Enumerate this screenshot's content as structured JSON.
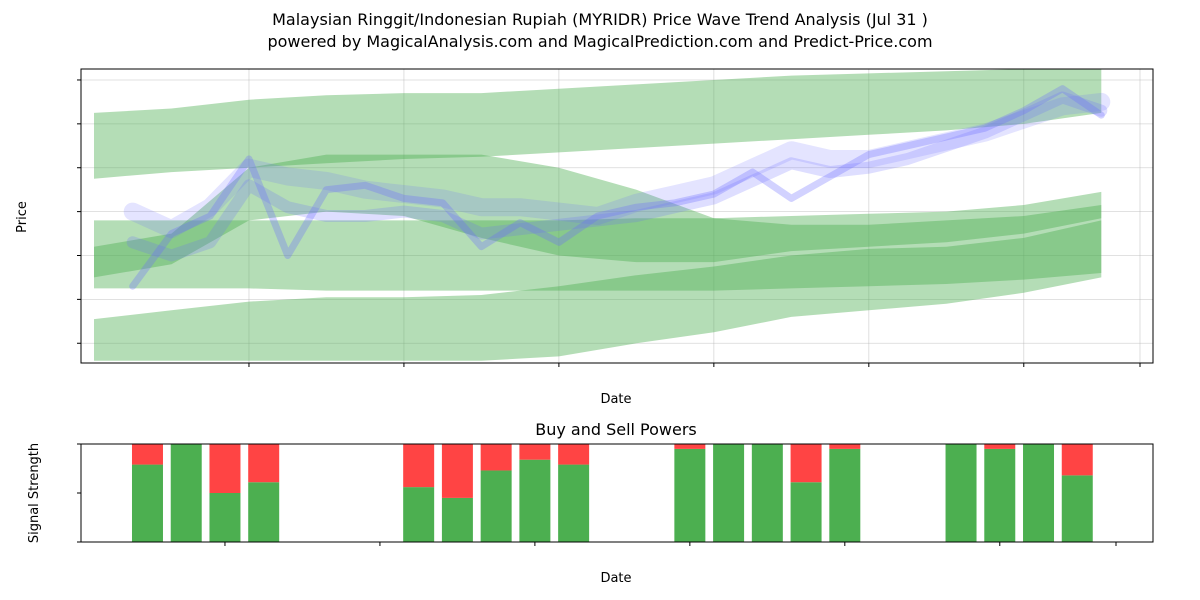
{
  "header": {
    "title_line1": "Malaysian Ringgit/Indonesian Rupiah (MYRIDR) Price Wave Trend Analysis (Jul 31 )",
    "title_line2": "powered by MagicalAnalysis.com and MagicalPrediction.com and Predict-Price.com"
  },
  "watermarks": [
    "MagicalAnalysis.com",
    "MagicalPrediction.com"
  ],
  "chart_data": [
    {
      "type": "line",
      "title": "",
      "xlabel": "Date",
      "ylabel": "Price",
      "xlim": [
        "2025-07-05",
        "2025-08-01"
      ],
      "ylim": [
        3751,
        3885
      ],
      "x_ticks": [
        "2025-07-09",
        "2025-07-13",
        "2025-07-17",
        "2025-07-21",
        "2025-07-25",
        "2025-07-29",
        "2025-08-01"
      ],
      "y_ticks": [
        3760,
        3780,
        3800,
        3820,
        3840,
        3860,
        3880
      ],
      "grid": true,
      "colors": {
        "green_band": "#4caf50",
        "blue_wave": "#6a6aff"
      },
      "bands": [
        {
          "name": "",
          "x": [
            "2025-07-05",
            "2025-07-07",
            "2025-07-09",
            "2025-07-11",
            "2025-07-13",
            "2025-07-15",
            "2025-07-17",
            "2025-07-19",
            "2025-07-21",
            "2025-07-23",
            "2025-07-25",
            "2025-07-27",
            "2025-07-29",
            "2025-07-31"
          ],
          "upper": [
            3865,
            3867,
            3871,
            3873,
            3874,
            3874,
            3876,
            3878,
            3880,
            3882,
            3883,
            3884,
            3885,
            3885
          ],
          "lower": [
            3835,
            3838,
            3840,
            3842,
            3844,
            3845,
            3847,
            3849,
            3851,
            3853,
            3855,
            3857,
            3860,
            3865
          ]
        },
        {
          "name": "",
          "x": [
            "2025-07-05",
            "2025-07-07",
            "2025-07-09",
            "2025-07-11",
            "2025-07-13",
            "2025-07-15",
            "2025-07-17",
            "2025-07-19",
            "2025-07-21",
            "2025-07-23",
            "2025-07-25",
            "2025-07-27",
            "2025-07-29",
            "2025-07-31"
          ],
          "upper": [
            3816,
            3816,
            3816,
            3816,
            3816,
            3816,
            3816,
            3817,
            3817,
            3818,
            3819,
            3820,
            3823,
            3829
          ],
          "lower": [
            3785,
            3785,
            3785,
            3784,
            3784,
            3784,
            3784,
            3784,
            3784,
            3785,
            3786,
            3787,
            3789,
            3792
          ]
        },
        {
          "name": "",
          "x": [
            "2025-07-05",
            "2025-07-07",
            "2025-07-09",
            "2025-07-11",
            "2025-07-13",
            "2025-07-15",
            "2025-07-17",
            "2025-07-19",
            "2025-07-21",
            "2025-07-23",
            "2025-07-25",
            "2025-07-27",
            "2025-07-29",
            "2025-07-31"
          ],
          "upper": [
            3771,
            3775,
            3779,
            3781,
            3781,
            3782,
            3786,
            3791,
            3795,
            3800,
            3803,
            3804,
            3808,
            3816
          ],
          "lower": [
            3752,
            3752,
            3752,
            3752,
            3752,
            3752,
            3754,
            3760,
            3765,
            3772,
            3775,
            3778,
            3783,
            3790
          ]
        },
        {
          "name": "",
          "x": [
            "2025-07-05",
            "2025-07-07",
            "2025-07-09",
            "2025-07-11",
            "2025-07-13",
            "2025-07-15",
            "2025-07-17",
            "2025-07-19",
            "2025-07-21",
            "2025-07-23",
            "2025-07-25",
            "2025-07-27",
            "2025-07-29",
            "2025-07-31"
          ],
          "upper": [
            3804,
            3810,
            3840,
            3846,
            3846,
            3846,
            3840,
            3830,
            3817,
            3814,
            3814,
            3816,
            3818,
            3823
          ],
          "lower": [
            3790,
            3796,
            3816,
            3820,
            3818,
            3808,
            3800,
            3797,
            3797,
            3802,
            3804,
            3806,
            3810,
            3817
          ]
        }
      ],
      "series": [
        {
          "name": "",
          "x": [
            "2025-07-06",
            "2025-07-07",
            "2025-07-08",
            "2025-07-09",
            "2025-07-10",
            "2025-07-11",
            "2025-07-12",
            "2025-07-13",
            "2025-07-14",
            "2025-07-15",
            "2025-07-16",
            "2025-07-17",
            "2025-07-18",
            "2025-07-19",
            "2025-07-20",
            "2025-07-21",
            "2025-07-22",
            "2025-07-23",
            "2025-07-24",
            "2025-07-25",
            "2025-07-26",
            "2025-07-27",
            "2025-07-28",
            "2025-07-29",
            "2025-07-30",
            "2025-07-31"
          ],
          "values": [
            3820,
            3812,
            3822,
            3840,
            3836,
            3834,
            3830,
            3828,
            3826,
            3822,
            3822,
            3820,
            3818,
            3824,
            3828,
            3832,
            3840,
            3848,
            3844,
            3844,
            3848,
            3852,
            3856,
            3862,
            3868,
            3870
          ]
        },
        {
          "name": "",
          "x": [
            "2025-07-06",
            "2025-07-07",
            "2025-07-08",
            "2025-07-09",
            "2025-07-10",
            "2025-07-11",
            "2025-07-12",
            "2025-07-13",
            "2025-07-14",
            "2025-07-15",
            "2025-07-16",
            "2025-07-17",
            "2025-07-18",
            "2025-07-19",
            "2025-07-20",
            "2025-07-21",
            "2025-07-22",
            "2025-07-23",
            "2025-07-24",
            "2025-07-25",
            "2025-07-26",
            "2025-07-27",
            "2025-07-28",
            "2025-07-29",
            "2025-07-30",
            "2025-07-31"
          ],
          "values": [
            3806,
            3800,
            3806,
            3832,
            3822,
            3818,
            3818,
            3820,
            3818,
            3810,
            3812,
            3814,
            3816,
            3818,
            3822,
            3826,
            3834,
            3842,
            3838,
            3840,
            3844,
            3850,
            3856,
            3864,
            3872,
            3866
          ]
        },
        {
          "name": "",
          "x": [
            "2025-07-06",
            "2025-07-07",
            "2025-07-08",
            "2025-07-09",
            "2025-07-10",
            "2025-07-11",
            "2025-07-12",
            "2025-07-13",
            "2025-07-14",
            "2025-07-15",
            "2025-07-16",
            "2025-07-17",
            "2025-07-18",
            "2025-07-19",
            "2025-07-20",
            "2025-07-21",
            "2025-07-22",
            "2025-07-23",
            "2025-07-24",
            "2025-07-25",
            "2025-07-26",
            "2025-07-27",
            "2025-07-28",
            "2025-07-29",
            "2025-07-30",
            "2025-07-31"
          ],
          "values": [
            3786,
            3810,
            3818,
            3844,
            3800,
            3830,
            3832,
            3826,
            3824,
            3804,
            3815,
            3806,
            3818,
            3822,
            3824,
            3828,
            3838,
            3826,
            3836,
            3846,
            3850,
            3854,
            3858,
            3866,
            3876,
            3864
          ]
        }
      ]
    },
    {
      "type": "bar",
      "title": "Buy and Sell Powers",
      "xlabel": "Date",
      "ylabel": "Signal Strength",
      "xlim": [
        "2025-07-05",
        "2025-08-01"
      ],
      "ylim": [
        0,
        1
      ],
      "x_ticks": [
        "2025-07-09",
        "2025-07-13",
        "2025-07-17",
        "2025-07-21",
        "2025-07-25",
        "2025-07-29",
        "2025-08-01"
      ],
      "y_ticks": [
        "0.0",
        "0.5",
        "1.0"
      ],
      "colors": {
        "buy": "#4caf50",
        "sell": "#ff4444"
      },
      "categories": [
        "2025-07-07",
        "2025-07-08",
        "2025-07-09",
        "2025-07-10",
        "2025-07-14",
        "2025-07-15",
        "2025-07-16",
        "2025-07-17",
        "2025-07-18",
        "2025-07-21",
        "2025-07-22",
        "2025-07-23",
        "2025-07-24",
        "2025-07-25",
        "2025-07-28",
        "2025-07-29",
        "2025-07-30",
        "2025-07-31"
      ],
      "series": [
        {
          "name": "",
          "values": [
            0.79,
            1.0,
            0.5,
            0.61,
            0.56,
            0.45,
            0.73,
            0.84,
            0.79,
            0.95,
            1.0,
            1.0,
            0.61,
            0.95,
            1.0,
            0.95,
            1.0,
            0.68
          ]
        },
        {
          "name": "",
          "values": [
            0.21,
            0.0,
            0.5,
            0.39,
            0.44,
            0.55,
            0.27,
            0.16,
            0.21,
            0.05,
            0.0,
            0.0,
            0.39,
            0.05,
            0.0,
            0.05,
            0.0,
            0.32
          ]
        }
      ]
    }
  ]
}
